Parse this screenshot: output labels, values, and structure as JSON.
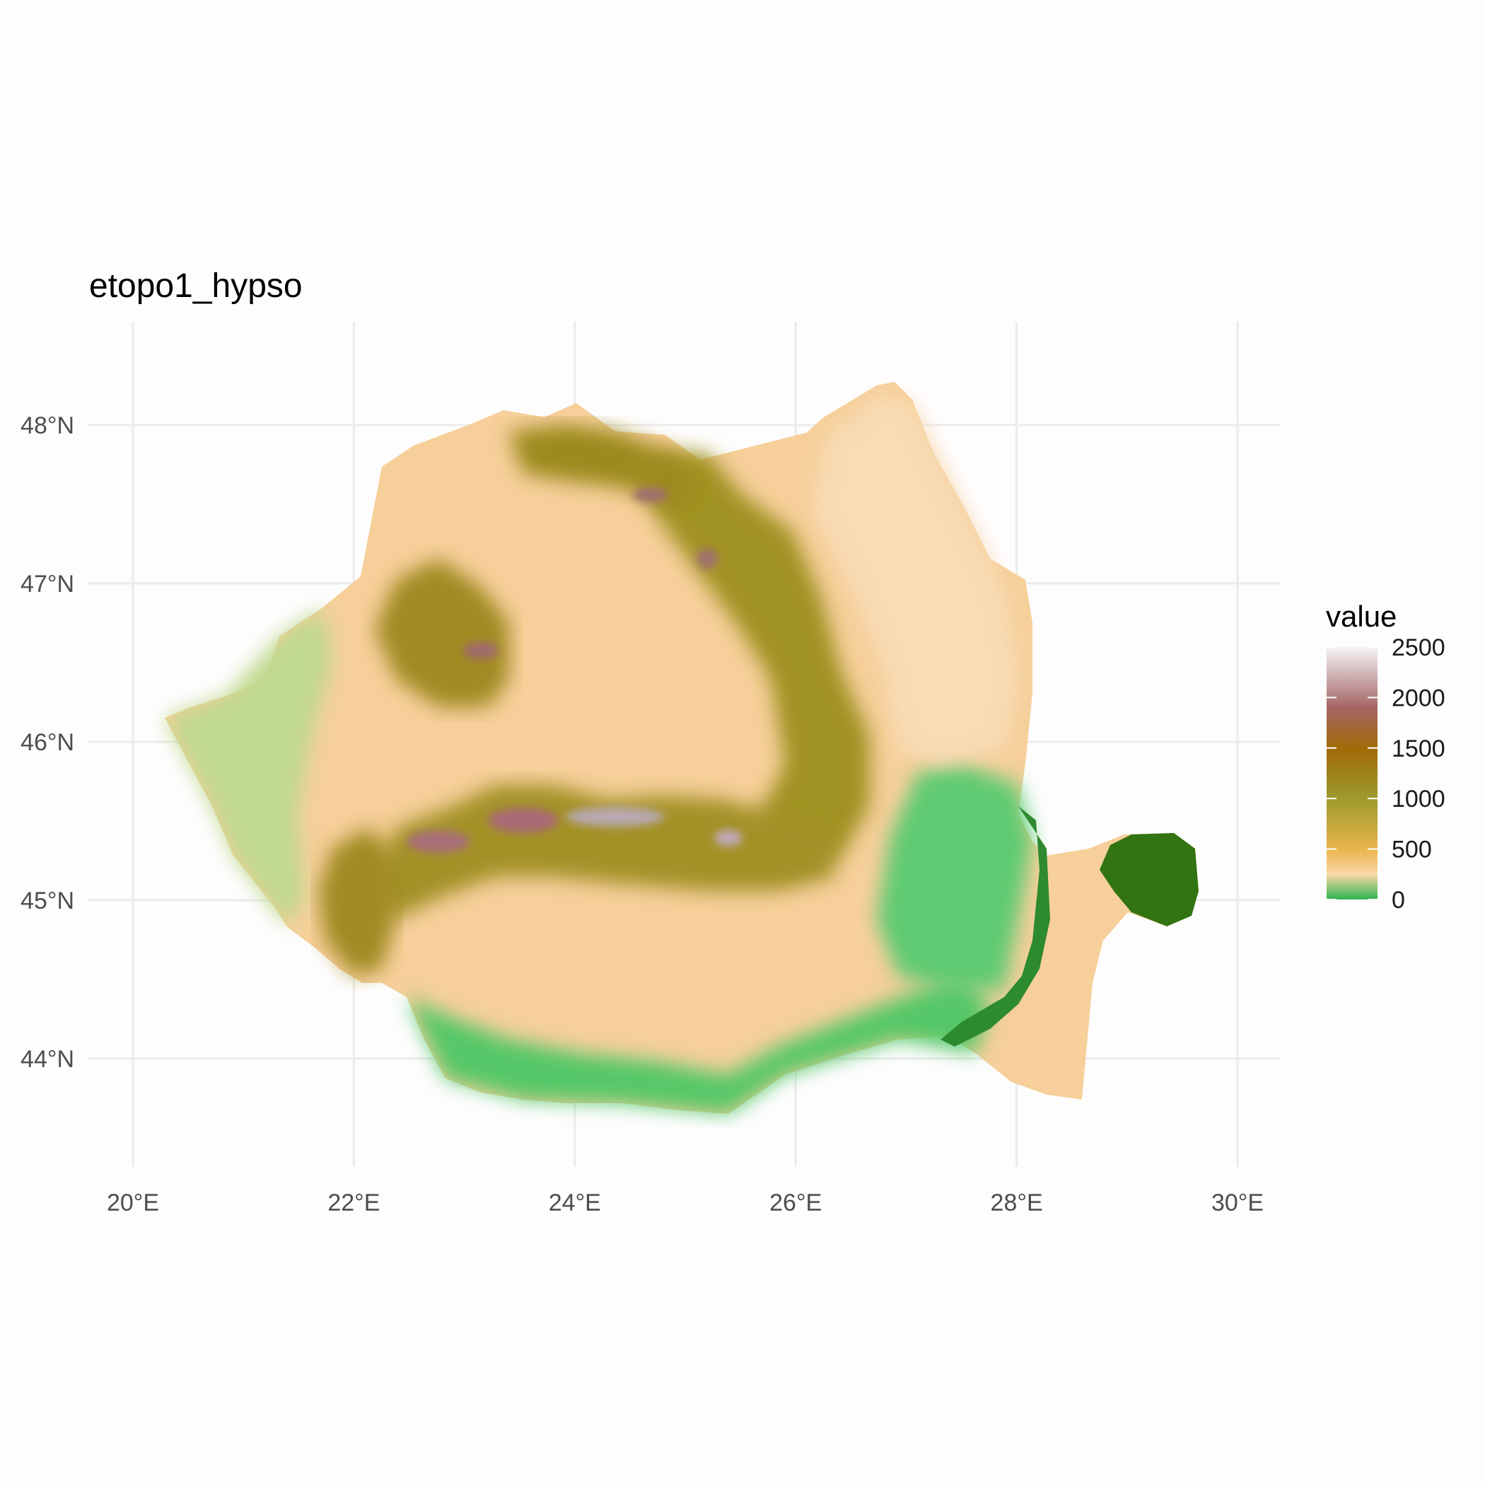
{
  "title": "etopo1_hypso",
  "legend": {
    "title": "value",
    "labels": [
      "2500",
      "2000",
      "1500",
      "1000",
      "500",
      "0"
    ],
    "breaks": [
      2500,
      2000,
      1500,
      1000,
      500,
      0
    ]
  },
  "axes": {
    "x_ticks": [
      {
        "value": 20,
        "label": "20°E"
      },
      {
        "value": 22,
        "label": "22°E"
      },
      {
        "value": 24,
        "label": "24°E"
      },
      {
        "value": 26,
        "label": "26°E"
      },
      {
        "value": 28,
        "label": "28°E"
      },
      {
        "value": 30,
        "label": "30°E"
      }
    ],
    "y_ticks": [
      {
        "value": 48,
        "label": "48°N"
      },
      {
        "value": 47,
        "label": "47°N"
      },
      {
        "value": 46,
        "label": "46°N"
      },
      {
        "value": 45,
        "label": "45°N"
      },
      {
        "value": 44,
        "label": "44°N"
      }
    ]
  },
  "chart_data": {
    "type": "heatmap",
    "title": "etopo1_hypso",
    "fill_variable": "value",
    "fill_range": [
      0,
      2500
    ],
    "grid": true,
    "legend_position": "right",
    "color_scale": [
      {
        "value": 0,
        "color": "#2fb350"
      },
      {
        "value": 250,
        "color": "#fbd8a6"
      },
      {
        "value": 500,
        "color": "#e8b44b"
      },
      {
        "value": 1000,
        "color": "#9e9a2c"
      },
      {
        "value": 1500,
        "color": "#a06a08"
      },
      {
        "value": 1900,
        "color": "#a56565"
      },
      {
        "value": 2500,
        "color": "#f4f4f6"
      }
    ],
    "x_range": [
      19.9,
      30.4
    ],
    "y_range": [
      43.35,
      48.85
    ]
  }
}
